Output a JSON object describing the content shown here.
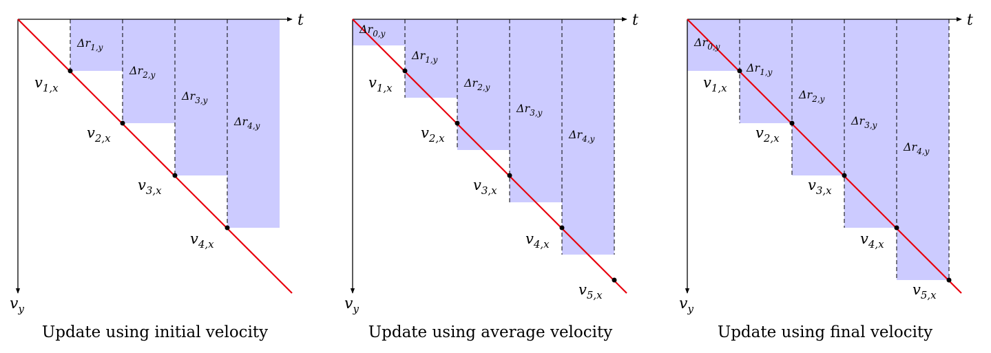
{
  "colors": {
    "bar_fill": "#cccbff",
    "line": "#e8000d",
    "axis": "#000000"
  },
  "panels": [
    {
      "caption": "Update using initial velocity",
      "axis_t": "t",
      "axis_v": "v",
      "axis_v_sub": "y",
      "bars": [
        {
          "sym": "Δr",
          "sub": "1,y"
        },
        {
          "sym": "Δr",
          "sub": "2,y"
        },
        {
          "sym": "Δr",
          "sub": "3,y"
        },
        {
          "sym": "Δr",
          "sub": "4,y"
        }
      ],
      "points": [
        {
          "sym": "v",
          "sub": "1,x"
        },
        {
          "sym": "v",
          "sub": "2,x"
        },
        {
          "sym": "v",
          "sub": "3,x"
        },
        {
          "sym": "v",
          "sub": "4,x"
        }
      ]
    },
    {
      "caption": "Update using average velocity",
      "axis_t": "t",
      "axis_v": "v",
      "axis_v_sub": "y",
      "bars": [
        {
          "sym": "Δr",
          "sub": "0,y"
        },
        {
          "sym": "Δr",
          "sub": "1,y"
        },
        {
          "sym": "Δr",
          "sub": "2,y"
        },
        {
          "sym": "Δr",
          "sub": "3,y"
        },
        {
          "sym": "Δr",
          "sub": "4,y"
        }
      ],
      "points": [
        {
          "sym": "v",
          "sub": "1,x"
        },
        {
          "sym": "v",
          "sub": "2,x"
        },
        {
          "sym": "v",
          "sub": "3,x"
        },
        {
          "sym": "v",
          "sub": "4,x"
        },
        {
          "sym": "v",
          "sub": "5,x"
        }
      ]
    },
    {
      "caption": "Update using final velocity",
      "axis_t": "t",
      "axis_v": "v",
      "axis_v_sub": "y",
      "bars": [
        {
          "sym": "Δr",
          "sub": "0,y"
        },
        {
          "sym": "Δr",
          "sub": "1,y"
        },
        {
          "sym": "Δr",
          "sub": "2,y"
        },
        {
          "sym": "Δr",
          "sub": "3,y"
        },
        {
          "sym": "Δr",
          "sub": "4,y"
        }
      ],
      "points": [
        {
          "sym": "v",
          "sub": "1,x"
        },
        {
          "sym": "v",
          "sub": "2,x"
        },
        {
          "sym": "v",
          "sub": "3,x"
        },
        {
          "sym": "v",
          "sub": "4,x"
        },
        {
          "sym": "v",
          "sub": "5,x"
        }
      ]
    }
  ]
}
